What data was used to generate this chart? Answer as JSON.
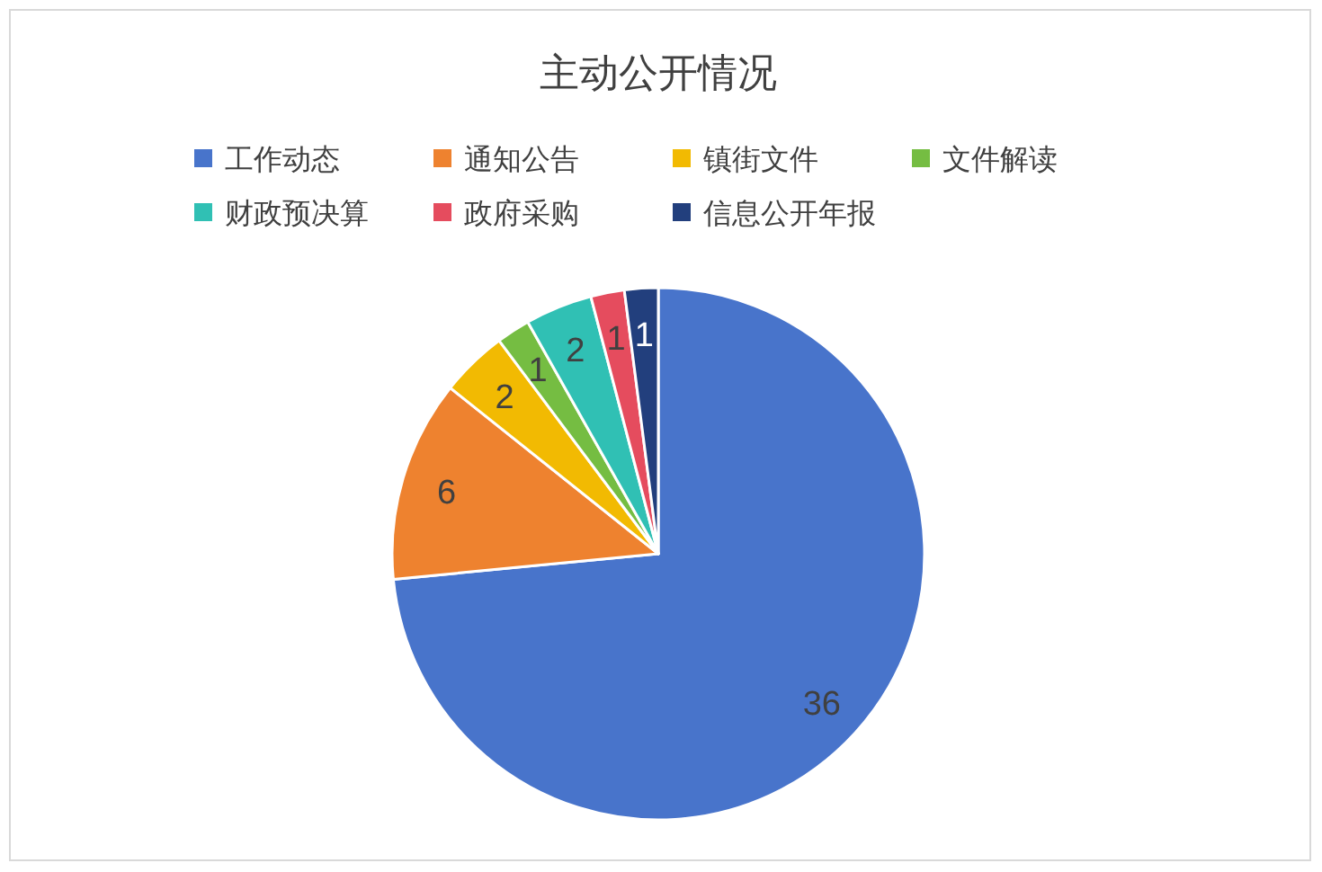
{
  "chart_data": {
    "type": "pie",
    "title": "主动公开情况",
    "categories": [
      "工作动态",
      "通知公告",
      "镇街文件",
      "文件解读",
      "财政预决算",
      "政府采购",
      "信息公开年报"
    ],
    "values": [
      36,
      6,
      2,
      1,
      2,
      1,
      1
    ],
    "colors": [
      "#4874cb",
      "#ee822f",
      "#f2ba02",
      "#75bd42",
      "#30c0b4",
      "#e54c5e",
      "#223f7d"
    ],
    "legend": "top",
    "data_labels": true
  }
}
